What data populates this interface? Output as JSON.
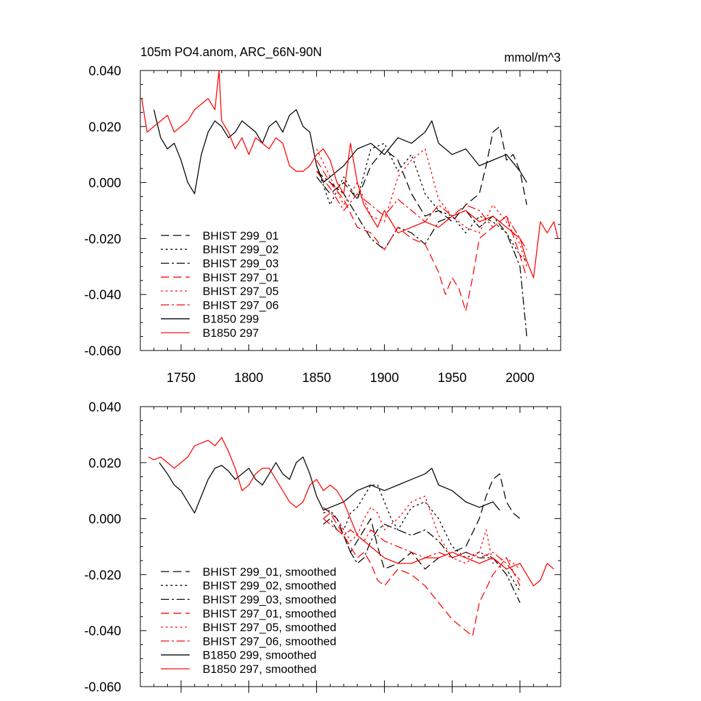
{
  "chart_data": [
    {
      "type": "line",
      "title": "105m PO4.anom, ARC_66N-90N",
      "units": "mmol/m^3",
      "xlim": [
        1720,
        2030
      ],
      "ylim": [
        -0.06,
        0.04
      ],
      "x_ticks": [
        1750,
        1800,
        1850,
        1900,
        1950,
        2000
      ],
      "x_tick_labels": [
        "1750",
        "1800",
        "1850",
        "1900",
        "1950",
        "2000"
      ],
      "y_ticks": [
        0.04,
        0.02,
        0.0,
        -0.02,
        -0.04,
        -0.06
      ],
      "y_tick_labels": [
        "0.040",
        "0.020",
        "0.000",
        "-0.020",
        "-0.040",
        "-0.060"
      ],
      "legend_position": "bottom-left",
      "series": [
        {
          "name": "BHIST 299_01",
          "color": "#000000",
          "dash": "dash",
          "x": [
            1850,
            1860,
            1870,
            1880,
            1890,
            1900,
            1910,
            1920,
            1930,
            1940,
            1950,
            1960,
            1970,
            1975,
            1980,
            1985,
            1990,
            1995,
            2000,
            2005
          ],
          "y": [
            0.002,
            -0.004,
            0.0,
            -0.006,
            0.006,
            0.012,
            0.008,
            -0.004,
            -0.012,
            -0.01,
            -0.014,
            -0.008,
            -0.004,
            0.006,
            0.018,
            0.02,
            0.008,
            0.01,
            0.004,
            -0.008
          ]
        },
        {
          "name": "BHIST 299_02",
          "color": "#000000",
          "dash": "dot",
          "x": [
            1850,
            1860,
            1870,
            1880,
            1890,
            1900,
            1910,
            1920,
            1930,
            1940,
            1950,
            1960,
            1970,
            1980,
            1990,
            2000,
            2005
          ],
          "y": [
            0.006,
            -0.008,
            0.002,
            -0.006,
            0.012,
            0.014,
            0.004,
            0.01,
            -0.004,
            -0.01,
            -0.012,
            -0.018,
            -0.012,
            -0.014,
            -0.018,
            -0.026,
            -0.028
          ]
        },
        {
          "name": "BHIST 299_03",
          "color": "#000000",
          "dash": "dashdot",
          "x": [
            1850,
            1860,
            1870,
            1880,
            1890,
            1900,
            1910,
            1920,
            1930,
            1940,
            1950,
            1960,
            1970,
            1980,
            1990,
            2000,
            2005
          ],
          "y": [
            0.004,
            0.0,
            -0.004,
            -0.012,
            -0.02,
            -0.024,
            -0.016,
            -0.018,
            -0.022,
            -0.014,
            -0.012,
            -0.01,
            -0.016,
            -0.012,
            -0.018,
            -0.03,
            -0.055
          ]
        },
        {
          "name": "BHIST 297_01",
          "color": "#ff0000",
          "dash": "dash",
          "x": [
            1850,
            1860,
            1870,
            1880,
            1890,
            1900,
            1910,
            1920,
            1930,
            1940,
            1945,
            1950,
            1955,
            1960,
            1965,
            1970,
            1980,
            1990,
            2000,
            2005
          ],
          "y": [
            0.008,
            0.0,
            -0.006,
            -0.016,
            -0.018,
            -0.024,
            -0.016,
            -0.02,
            -0.022,
            -0.032,
            -0.04,
            -0.034,
            -0.038,
            -0.046,
            -0.034,
            -0.02,
            -0.016,
            -0.012,
            -0.026,
            -0.034
          ]
        },
        {
          "name": "BHIST 297_05",
          "color": "#ff0000",
          "dash": "dot",
          "x": [
            1850,
            1860,
            1870,
            1880,
            1890,
            1900,
            1910,
            1920,
            1930,
            1940,
            1950,
            1960,
            1970,
            1980,
            1990,
            2000,
            2005
          ],
          "y": [
            0.012,
            0.002,
            -0.008,
            0.0,
            -0.012,
            -0.014,
            0.002,
            0.008,
            0.012,
            -0.006,
            -0.012,
            -0.016,
            -0.018,
            -0.008,
            -0.014,
            -0.022,
            -0.03
          ]
        },
        {
          "name": "BHIST 297_06",
          "color": "#ff0000",
          "dash": "dashdot",
          "x": [
            1850,
            1860,
            1870,
            1880,
            1890,
            1900,
            1910,
            1920,
            1930,
            1940,
            1950,
            1960,
            1970,
            1980,
            1990,
            2000,
            2005
          ],
          "y": [
            0.004,
            -0.002,
            -0.01,
            -0.004,
            -0.008,
            -0.012,
            -0.006,
            -0.01,
            -0.014,
            -0.008,
            -0.012,
            -0.008,
            -0.01,
            -0.016,
            -0.012,
            -0.02,
            -0.024
          ]
        },
        {
          "name": "B1850 299",
          "color": "#000000",
          "dash": "solid",
          "x": [
            1730,
            1735,
            1740,
            1745,
            1750,
            1755,
            1760,
            1765,
            1770,
            1775,
            1780,
            1785,
            1790,
            1795,
            1800,
            1805,
            1810,
            1815,
            1820,
            1825,
            1830,
            1835,
            1840,
            1845,
            1850,
            1855,
            1860,
            1865,
            1870,
            1880,
            1890,
            1900,
            1910,
            1920,
            1930,
            1935,
            1940,
            1950,
            1960,
            1970,
            1980,
            1990,
            2000,
            2005
          ],
          "y": [
            0.026,
            0.016,
            0.012,
            0.014,
            0.008,
            0.0,
            -0.004,
            0.01,
            0.018,
            0.022,
            0.02,
            0.016,
            0.018,
            0.022,
            0.02,
            0.018,
            0.014,
            0.02,
            0.022,
            0.018,
            0.024,
            0.026,
            0.02,
            0.018,
            0.006,
            0.0,
            0.002,
            0.004,
            0.006,
            0.012,
            0.014,
            0.01,
            0.016,
            0.014,
            0.018,
            0.022,
            0.014,
            0.01,
            0.012,
            0.006,
            0.008,
            0.01,
            0.004,
            0.0
          ]
        },
        {
          "name": "B1850 297",
          "color": "#ff0000",
          "dash": "solid",
          "x": [
            1721,
            1725,
            1730,
            1735,
            1740,
            1745,
            1750,
            1755,
            1760,
            1765,
            1770,
            1775,
            1778,
            1780,
            1785,
            1790,
            1795,
            1800,
            1805,
            1810,
            1815,
            1820,
            1825,
            1830,
            1835,
            1840,
            1845,
            1850,
            1855,
            1860,
            1865,
            1870,
            1875,
            1880,
            1885,
            1890,
            1895,
            1900,
            1910,
            1920,
            1930,
            1940,
            1950,
            1960,
            1970,
            1980,
            1990,
            2000,
            2005,
            2010,
            2015,
            2020,
            2025,
            2028
          ],
          "y": [
            0.03,
            0.018,
            0.02,
            0.022,
            0.024,
            0.018,
            0.02,
            0.022,
            0.026,
            0.028,
            0.03,
            0.026,
            0.04,
            0.022,
            0.018,
            0.012,
            0.016,
            0.01,
            0.016,
            0.014,
            0.012,
            0.016,
            0.014,
            0.006,
            0.004,
            0.004,
            0.006,
            0.01,
            0.012,
            0.008,
            0.0,
            -0.004,
            0.014,
            0.0,
            -0.008,
            -0.012,
            -0.016,
            -0.01,
            -0.018,
            -0.016,
            -0.014,
            -0.016,
            -0.012,
            -0.01,
            -0.014,
            -0.012,
            -0.016,
            -0.02,
            -0.028,
            -0.034,
            -0.014,
            -0.018,
            -0.014,
            -0.02
          ]
        }
      ]
    },
    {
      "type": "line",
      "xlim": [
        1720,
        2030
      ],
      "ylim": [
        -0.06,
        0.04
      ],
      "y_ticks": [
        0.04,
        0.02,
        0.0,
        -0.02,
        -0.04,
        -0.06
      ],
      "y_tick_labels": [
        "0.040",
        "0.020",
        "0.000",
        "-0.020",
        "-0.040",
        "-0.060"
      ],
      "legend_position": "bottom-left",
      "series": [
        {
          "name": "BHIST 299_01, smoothed",
          "color": "#000000",
          "dash": "dash",
          "x": [
            1855,
            1860,
            1865,
            1870,
            1875,
            1880,
            1885,
            1890,
            1895,
            1900,
            1910,
            1920,
            1930,
            1940,
            1950,
            1960,
            1970,
            1975,
            1980,
            1985,
            1990,
            1995,
            2000
          ],
          "y": [
            0.004,
            0.002,
            0.0,
            -0.006,
            -0.012,
            -0.008,
            -0.004,
            0.0,
            -0.01,
            -0.018,
            -0.016,
            -0.012,
            -0.018,
            -0.014,
            -0.012,
            -0.01,
            0.0,
            0.008,
            0.014,
            0.016,
            0.006,
            0.002,
            0.0
          ]
        },
        {
          "name": "BHIST 299_02, smoothed",
          "color": "#000000",
          "dash": "dot",
          "x": [
            1855,
            1860,
            1865,
            1870,
            1875,
            1880,
            1885,
            1890,
            1895,
            1900,
            1905,
            1910,
            1920,
            1930,
            1940,
            1950,
            1960,
            1970,
            1980,
            1990,
            2000
          ],
          "y": [
            0.002,
            0.003,
            0.0,
            -0.004,
            0.002,
            0.004,
            0.008,
            0.012,
            0.012,
            0.006,
            0.0,
            -0.004,
            0.004,
            0.006,
            0.0,
            -0.01,
            -0.014,
            -0.012,
            -0.014,
            -0.018,
            -0.026
          ]
        },
        {
          "name": "BHIST 299_03, smoothed",
          "color": "#000000",
          "dash": "dashdot",
          "x": [
            1855,
            1860,
            1865,
            1870,
            1875,
            1880,
            1885,
            1890,
            1895,
            1900,
            1910,
            1920,
            1930,
            1940,
            1950,
            1960,
            1970,
            1980,
            1990,
            2000
          ],
          "y": [
            -0.002,
            0.0,
            -0.004,
            -0.006,
            -0.012,
            -0.016,
            -0.014,
            -0.008,
            -0.004,
            -0.002,
            -0.004,
            -0.006,
            -0.004,
            -0.008,
            -0.014,
            -0.012,
            -0.014,
            -0.014,
            -0.02,
            -0.03
          ]
        },
        {
          "name": "BHIST 297_01, smoothed",
          "color": "#ff0000",
          "dash": "dash",
          "x": [
            1855,
            1860,
            1865,
            1870,
            1875,
            1880,
            1885,
            1890,
            1895,
            1900,
            1910,
            1920,
            1930,
            1940,
            1950,
            1960,
            1965,
            1970,
            1980,
            1990,
            2000
          ],
          "y": [
            0.0,
            0.002,
            -0.002,
            -0.006,
            -0.01,
            -0.014,
            -0.012,
            -0.016,
            -0.022,
            -0.024,
            -0.018,
            -0.02,
            -0.024,
            -0.03,
            -0.036,
            -0.04,
            -0.042,
            -0.03,
            -0.02,
            -0.014,
            -0.024
          ]
        },
        {
          "name": "BHIST 297_05, smoothed",
          "color": "#ff0000",
          "dash": "dot",
          "x": [
            1855,
            1860,
            1865,
            1870,
            1875,
            1880,
            1885,
            1890,
            1895,
            1900,
            1910,
            1920,
            1930,
            1940,
            1950,
            1960,
            1970,
            1975,
            1980,
            1990,
            2000
          ],
          "y": [
            0.004,
            0.002,
            0.0,
            -0.004,
            -0.008,
            -0.006,
            0.0,
            0.004,
            0.002,
            -0.004,
            0.0,
            0.006,
            0.008,
            -0.006,
            -0.014,
            -0.016,
            -0.012,
            -0.004,
            -0.016,
            -0.014,
            -0.018
          ]
        },
        {
          "name": "BHIST 297_06, smoothed",
          "color": "#ff0000",
          "dash": "dashdot",
          "x": [
            1855,
            1860,
            1865,
            1870,
            1875,
            1880,
            1885,
            1890,
            1895,
            1900,
            1910,
            1920,
            1930,
            1940,
            1950,
            1960,
            1970,
            1980,
            1990,
            2000
          ],
          "y": [
            0.0,
            -0.002,
            -0.004,
            -0.006,
            -0.004,
            -0.006,
            -0.008,
            -0.004,
            -0.006,
            -0.008,
            -0.01,
            -0.012,
            -0.014,
            -0.012,
            -0.014,
            -0.012,
            -0.014,
            -0.012,
            -0.016,
            -0.022
          ]
        },
        {
          "name": "B1850 299, smoothed",
          "color": "#000000",
          "dash": "solid",
          "x": [
            1734,
            1740,
            1745,
            1750,
            1755,
            1760,
            1765,
            1770,
            1775,
            1780,
            1785,
            1790,
            1795,
            1800,
            1805,
            1810,
            1815,
            1820,
            1825,
            1830,
            1835,
            1840,
            1845,
            1850,
            1855,
            1860,
            1870,
            1880,
            1890,
            1900,
            1910,
            1920,
            1930,
            1935,
            1940,
            1950,
            1960,
            1970,
            1980,
            1985
          ],
          "y": [
            0.02,
            0.016,
            0.012,
            0.01,
            0.006,
            0.002,
            0.008,
            0.014,
            0.018,
            0.019,
            0.017,
            0.014,
            0.016,
            0.018,
            0.014,
            0.012,
            0.016,
            0.02,
            0.016,
            0.014,
            0.02,
            0.022,
            0.016,
            0.008,
            0.003,
            0.004,
            0.006,
            0.01,
            0.012,
            0.01,
            0.012,
            0.014,
            0.016,
            0.018,
            0.012,
            0.01,
            0.006,
            0.004,
            0.006,
            0.003
          ]
        },
        {
          "name": "B1850 297, smoothed",
          "color": "#ff0000",
          "dash": "solid",
          "x": [
            1726,
            1730,
            1735,
            1740,
            1745,
            1750,
            1755,
            1760,
            1765,
            1770,
            1775,
            1780,
            1785,
            1790,
            1795,
            1800,
            1805,
            1810,
            1815,
            1820,
            1825,
            1830,
            1835,
            1840,
            1845,
            1850,
            1855,
            1860,
            1865,
            1870,
            1875,
            1880,
            1885,
            1890,
            1895,
            1900,
            1910,
            1920,
            1930,
            1940,
            1950,
            1960,
            1970,
            1980,
            1990,
            2000,
            2010,
            2015,
            2020,
            2025
          ],
          "y": [
            0.022,
            0.021,
            0.022,
            0.02,
            0.018,
            0.02,
            0.022,
            0.026,
            0.027,
            0.028,
            0.026,
            0.029,
            0.024,
            0.018,
            0.01,
            0.012,
            0.016,
            0.018,
            0.018,
            0.014,
            0.01,
            0.006,
            0.004,
            0.006,
            0.012,
            0.014,
            0.01,
            0.012,
            0.01,
            0.006,
            0.0,
            -0.006,
            -0.008,
            -0.01,
            -0.012,
            -0.014,
            -0.016,
            -0.016,
            -0.014,
            -0.014,
            -0.012,
            -0.014,
            -0.016,
            -0.014,
            -0.018,
            -0.016,
            -0.024,
            -0.022,
            -0.016,
            -0.018
          ]
        }
      ]
    }
  ]
}
